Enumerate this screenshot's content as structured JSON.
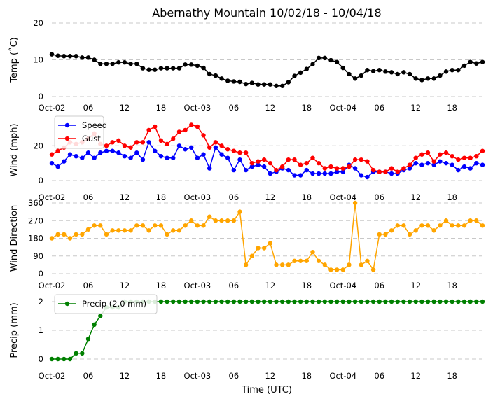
{
  "title": "Abernathy Mountain 10/02/18 - 10/04/18",
  "xlabel": "Time (UTC)",
  "x_tick_labels": [
    "Oct-02",
    "06",
    "12",
    "18",
    "Oct-03",
    "06",
    "12",
    "18",
    "Oct-04",
    "06",
    "12",
    "18"
  ],
  "x_tick_hours": [
    0,
    6,
    12,
    18,
    24,
    30,
    36,
    42,
    48,
    54,
    60,
    66
  ],
  "x_range_hours": [
    0,
    71
  ],
  "colors": {
    "temp": "#000000",
    "speed": "#0000ff",
    "gust": "#ff0000",
    "direction": "#ffa500",
    "precip": "#008000",
    "grid": "#c8c8c8"
  },
  "chart_data": [
    {
      "id": "temp",
      "type": "line",
      "ylabel": "Temp (˚C)",
      "ylim": [
        0,
        20
      ],
      "yticks": [
        0,
        10,
        20
      ],
      "grid": true,
      "series": [
        {
          "name": "Temp",
          "color": "#000000",
          "x": [
            0,
            1,
            2,
            3,
            4,
            5,
            6,
            7,
            8,
            9,
            10,
            11,
            12,
            13,
            14,
            15,
            16,
            17,
            18,
            19,
            20,
            21,
            22,
            23,
            24,
            25,
            26,
            27,
            28,
            29,
            30,
            31,
            32,
            33,
            34,
            35,
            36,
            37,
            38,
            39,
            40,
            41,
            42,
            43,
            44,
            45,
            46,
            47,
            48,
            49,
            50,
            51,
            52,
            53,
            54,
            55,
            56,
            57,
            58,
            59,
            60,
            61,
            62,
            63,
            64,
            65,
            66,
            67,
            68,
            69,
            70,
            71
          ],
          "values": [
            11.5,
            11.1,
            11.0,
            11.0,
            11.0,
            10.6,
            10.6,
            10.0,
            8.9,
            8.9,
            8.9,
            9.3,
            9.3,
            8.9,
            8.9,
            7.7,
            7.3,
            7.3,
            7.7,
            7.7,
            7.7,
            7.7,
            8.7,
            8.7,
            8.4,
            7.8,
            6.1,
            5.7,
            4.9,
            4.3,
            4.1,
            4.0,
            3.4,
            3.7,
            3.3,
            3.3,
            3.3,
            2.9,
            2.9,
            3.9,
            5.6,
            6.5,
            7.5,
            8.8,
            10.5,
            10.5,
            9.9,
            9.4,
            7.8,
            6.1,
            4.9,
            5.7,
            7.2,
            6.9,
            7.2,
            6.8,
            6.6,
            6.1,
            6.6,
            6.1,
            4.9,
            4.5,
            4.9,
            4.9,
            5.7,
            6.8,
            7.2,
            7.2,
            8.4,
            9.4,
            9.0,
            9.4
          ]
        }
      ]
    },
    {
      "id": "wind",
      "type": "line",
      "ylabel": "Wind (mph)",
      "ylim": [
        0,
        35
      ],
      "yticks": [
        0,
        20
      ],
      "grid": true,
      "legend": "top-left",
      "series": [
        {
          "name": "Speed",
          "color": "#0000ff",
          "x": [
            0,
            1,
            2,
            3,
            4,
            5,
            6,
            7,
            8,
            9,
            10,
            11,
            12,
            13,
            14,
            15,
            16,
            17,
            18,
            19,
            20,
            21,
            22,
            23,
            24,
            25,
            26,
            27,
            28,
            29,
            30,
            31,
            32,
            33,
            34,
            35,
            36,
            37,
            38,
            39,
            40,
            41,
            42,
            43,
            44,
            45,
            46,
            47,
            48,
            49,
            50,
            51,
            52,
            53,
            54,
            55,
            56,
            57,
            58,
            59,
            60,
            61,
            62,
            63,
            64,
            65,
            66,
            67,
            68,
            69,
            70,
            71
          ],
          "values": [
            10,
            8,
            11,
            15,
            14,
            13,
            16,
            13,
            16,
            17,
            17,
            16,
            14,
            13,
            16,
            12,
            22,
            17,
            14,
            13,
            13,
            20,
            18,
            19,
            13,
            15,
            7,
            19,
            15,
            13,
            6,
            12,
            6,
            8,
            9,
            8,
            4,
            5,
            7,
            6,
            3,
            3,
            6,
            4,
            4,
            4,
            4,
            5,
            5,
            9,
            7,
            3,
            2,
            5,
            5,
            5,
            4,
            4,
            6,
            7,
            10,
            9,
            10,
            9,
            11,
            10,
            9,
            6,
            8,
            7,
            10,
            9
          ]
        },
        {
          "name": "Gust",
          "color": "#ff0000",
          "x": [
            0,
            1,
            2,
            3,
            4,
            5,
            6,
            7,
            8,
            9,
            10,
            11,
            12,
            13,
            14,
            15,
            16,
            17,
            18,
            19,
            20,
            21,
            22,
            23,
            24,
            25,
            26,
            27,
            28,
            29,
            30,
            31,
            32,
            33,
            34,
            35,
            36,
            37,
            38,
            39,
            40,
            41,
            42,
            43,
            44,
            45,
            46,
            47,
            48,
            49,
            50,
            51,
            52,
            53,
            54,
            55,
            56,
            57,
            58,
            59,
            60,
            61,
            62,
            63,
            64,
            65,
            66,
            67,
            68,
            69,
            70,
            71
          ],
          "values": [
            15,
            17,
            19,
            22,
            21,
            22,
            24,
            27,
            21,
            20,
            22,
            23,
            20,
            19,
            22,
            22,
            29,
            31,
            23,
            21,
            24,
            28,
            29,
            32,
            31,
            26,
            19,
            22,
            20,
            18,
            17,
            16,
            16,
            10,
            11,
            12,
            10,
            6,
            8,
            12,
            12,
            9,
            10,
            13,
            10,
            7,
            8,
            7,
            7,
            8,
            12,
            12,
            11,
            6,
            5,
            5,
            7,
            5,
            7,
            9,
            13,
            15,
            16,
            11,
            15,
            16,
            14,
            12,
            13,
            13,
            14,
            17
          ]
        }
      ]
    },
    {
      "id": "direction",
      "type": "line",
      "ylabel": "Wind Direction",
      "ylim": [
        0,
        360
      ],
      "yticks": [
        0,
        90,
        180,
        270,
        360
      ],
      "grid": true,
      "series": [
        {
          "name": "Direction",
          "color": "#ffa500",
          "x": [
            0,
            1,
            2,
            3,
            4,
            5,
            6,
            7,
            8,
            9,
            10,
            11,
            12,
            13,
            14,
            15,
            16,
            17,
            18,
            19,
            20,
            21,
            22,
            23,
            24,
            25,
            26,
            27,
            28,
            29,
            30,
            31,
            32,
            33,
            34,
            35,
            36,
            37,
            38,
            39,
            40,
            41,
            42,
            43,
            44,
            45,
            46,
            47,
            48,
            49,
            50,
            51,
            52,
            53,
            54,
            55,
            56,
            57,
            58,
            59,
            60,
            61,
            62,
            63,
            64,
            65,
            66,
            67,
            68,
            69,
            70,
            71
          ],
          "values": [
            180,
            200,
            200,
            180,
            200,
            200,
            225,
            245,
            245,
            200,
            220,
            220,
            220,
            220,
            245,
            245,
            220,
            245,
            245,
            200,
            220,
            220,
            245,
            270,
            245,
            245,
            290,
            270,
            270,
            270,
            270,
            315,
            45,
            90,
            130,
            130,
            155,
            45,
            45,
            45,
            65,
            65,
            65,
            110,
            65,
            45,
            20,
            20,
            20,
            45,
            360,
            45,
            65,
            20,
            200,
            200,
            220,
            245,
            245,
            200,
            220,
            245,
            245,
            220,
            245,
            270,
            245,
            245,
            245,
            270,
            270,
            245
          ]
        }
      ]
    },
    {
      "id": "precip",
      "type": "line",
      "ylabel": "Precip (mm)",
      "ylim": [
        0,
        2
      ],
      "yticks": [
        0,
        1,
        2
      ],
      "grid": true,
      "legend": "top-left",
      "series": [
        {
          "name": "Precip (2.0 mm)",
          "color": "#008000",
          "x": [
            0,
            1,
            2,
            3,
            4,
            5,
            6,
            7,
            8,
            9,
            10,
            11,
            12,
            13,
            14,
            15,
            16,
            17,
            18,
            19,
            20,
            21,
            22,
            23,
            24,
            25,
            26,
            27,
            28,
            29,
            30,
            31,
            32,
            33,
            34,
            35,
            36,
            37,
            38,
            39,
            40,
            41,
            42,
            43,
            44,
            45,
            46,
            47,
            48,
            49,
            50,
            51,
            52,
            53,
            54,
            55,
            56,
            57,
            58,
            59,
            60,
            61,
            62,
            63,
            64,
            65,
            66,
            67,
            68,
            69,
            70,
            71
          ],
          "values": [
            0,
            0,
            0,
            0,
            0.2,
            0.2,
            0.7,
            1.2,
            1.5,
            1.8,
            1.8,
            1.8,
            2,
            2,
            2,
            2,
            2,
            2,
            2,
            2,
            2,
            2,
            2,
            2,
            2,
            2,
            2,
            2,
            2,
            2,
            2,
            2,
            2,
            2,
            2,
            2,
            2,
            2,
            2,
            2,
            2,
            2,
            2,
            2,
            2,
            2,
            2,
            2,
            2,
            2,
            2,
            2,
            2,
            2,
            2,
            2,
            2,
            2,
            2,
            2,
            2,
            2,
            2,
            2,
            2,
            2,
            2,
            2,
            2,
            2,
            2,
            2
          ]
        }
      ]
    }
  ]
}
